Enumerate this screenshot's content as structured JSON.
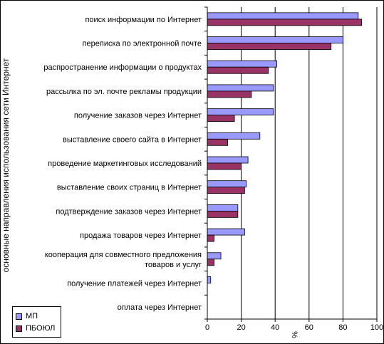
{
  "chart_data": {
    "type": "bar",
    "orientation": "horizontal",
    "categories": [
      "поиск информации по Интернет",
      "переписка по электронной почте",
      "распространение информации о продуктах",
      "рассылка по эл. почте рекламы продукции",
      "получение заказов через Интернет",
      "выставление своего сайта в  Интернет",
      "проведение маркетинговых исследований",
      "выставление своих страниц в  Интернет",
      "подтверждение заказов через Интернет",
      "продажа товаров через Интернет",
      [
        "кооперация для совместного предложения",
        "товаров и услуг"
      ],
      "получение платежей через Интернет",
      "оплата через Интернет"
    ],
    "series": [
      {
        "name": "МП",
        "color": "#9999ff",
        "values": [
          89,
          80,
          41,
          39,
          39,
          31,
          24,
          23,
          18,
          22,
          8,
          2,
          0
        ]
      },
      {
        "name": "ПБОЮЛ",
        "color": "#993366",
        "values": [
          91,
          73,
          36,
          26,
          16,
          12,
          20,
          22,
          18,
          4,
          4,
          0,
          0
        ]
      }
    ],
    "x_ticks": [
      0,
      20,
      40,
      60,
      80,
      100
    ],
    "xlim": [
      0,
      100
    ],
    "xlabel": "%",
    "ylabel": "основные направления использования сети Интернет",
    "grid": "vertical",
    "legend_position": "bottom-left"
  }
}
